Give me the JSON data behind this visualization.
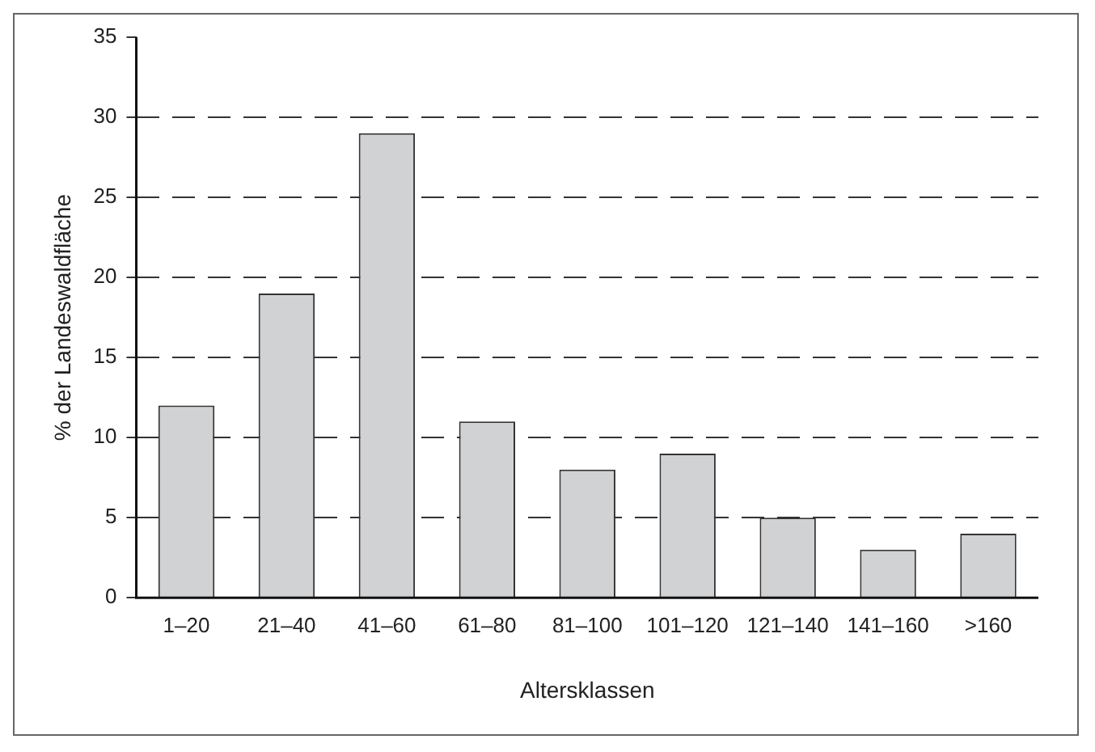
{
  "chart_data": {
    "type": "bar",
    "xlabel": "Altersklassen",
    "ylabel": "% der Landeswaldfläche",
    "categories": [
      "1–20",
      "21–40",
      "41–60",
      "61–80",
      "81–100",
      "101–120",
      "121–140",
      "141–160",
      ">160"
    ],
    "values": [
      12,
      19,
      29,
      11,
      8,
      9,
      5,
      3,
      4
    ],
    "color": "#d1d2d4",
    "ylim": [
      0,
      35
    ],
    "yticks": [
      0,
      5,
      10,
      15,
      20,
      25,
      30,
      35
    ],
    "grid": "y"
  }
}
